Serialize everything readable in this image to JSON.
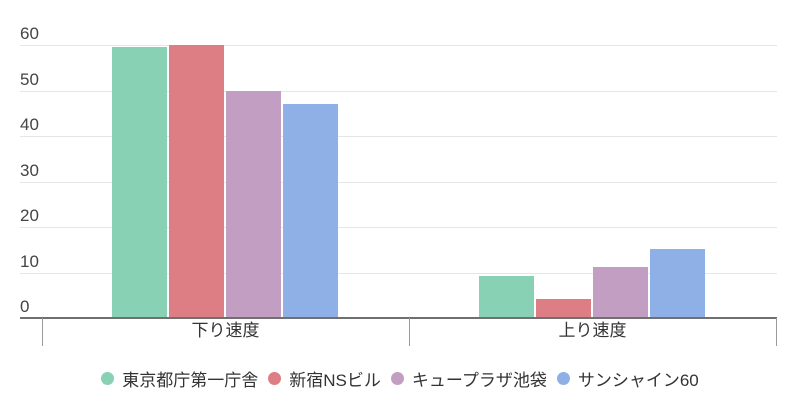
{
  "chart_data": {
    "type": "bar",
    "title": "",
    "xlabel": "",
    "ylabel": "",
    "ylim": [
      0,
      60
    ],
    "yticks": [
      0,
      10,
      20,
      30,
      40,
      50,
      60
    ],
    "grid": true,
    "legend_position": "bottom",
    "categories": [
      "下り速度",
      "上り速度"
    ],
    "series": [
      {
        "name": "東京都庁第一庁舎",
        "color": "#88d1b4",
        "values": [
          59.5,
          9.2
        ]
      },
      {
        "name": "新宿NSビル",
        "color": "#dd7e85",
        "values": [
          60.0,
          4.2
        ]
      },
      {
        "name": "キュープラザ池袋",
        "color": "#c29fc2",
        "values": [
          50.0,
          11.2
        ]
      },
      {
        "name": "サンシャイン60",
        "color": "#8fb0e6",
        "values": [
          47.0,
          15.2
        ]
      }
    ]
  }
}
